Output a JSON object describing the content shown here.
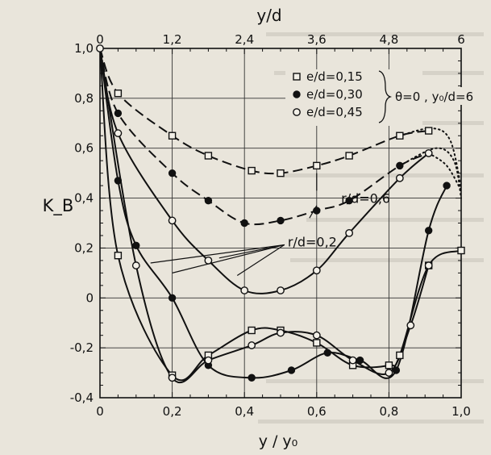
{
  "chart_data": {
    "type": "line",
    "x_top_label": "y/d",
    "x_top_ticks": [
      "0",
      "1,2",
      "2,4",
      "3,6",
      "4,8",
      "6"
    ],
    "x_bottom_label": "y / y₀",
    "x_bottom_ticks": [
      "0",
      "0,2",
      "0,4",
      "0,6",
      "0,8",
      "1,0"
    ],
    "ylabel": "K_B",
    "y_ticks": [
      "1,0",
      "0,8",
      "0,6",
      "0,4",
      "0,2",
      "0",
      "-0,2",
      "-0,4"
    ],
    "xlim": [
      0,
      1.0
    ],
    "ylim": [
      -0.4,
      1.0
    ],
    "grid": true,
    "legend": {
      "entries": [
        {
          "marker": "square",
          "label": "e/d=0,15"
        },
        {
          "marker": "filled-circle",
          "label": "e/d=0,30"
        },
        {
          "marker": "open-circle",
          "label": "e/d=0,45"
        }
      ],
      "brace_text": "θ=0 ,  y₀/d=6",
      "placement": "top-right"
    },
    "annotations": [
      {
        "text": "r/d=0,6",
        "x": 0.69,
        "y": 0.4
      },
      {
        "text": "r/d=0,2",
        "x": 0.56,
        "y": 0.2
      }
    ],
    "series": [
      {
        "marker": "square",
        "style": "dashed",
        "group": "r/d=0,6",
        "points": [
          [
            0,
            1.0
          ],
          [
            0.05,
            0.82
          ],
          [
            0.2,
            0.65
          ],
          [
            0.3,
            0.57
          ],
          [
            0.42,
            0.51
          ],
          [
            0.5,
            0.5
          ],
          [
            0.6,
            0.53
          ],
          [
            0.69,
            0.57
          ],
          [
            0.83,
            0.65
          ],
          [
            0.91,
            0.67
          ]
        ],
        "dotted_tail": [
          [
            0.83,
            0.65
          ],
          [
            0.92,
            0.68
          ],
          [
            0.97,
            0.63
          ],
          [
            1.0,
            0.44
          ]
        ]
      },
      {
        "marker": "filled-circle",
        "style": "dashed",
        "group": "r/d=0,6",
        "points": [
          [
            0,
            1.0
          ],
          [
            0.05,
            0.74
          ],
          [
            0.2,
            0.5
          ],
          [
            0.3,
            0.39
          ],
          [
            0.4,
            0.3
          ],
          [
            0.5,
            0.31
          ],
          [
            0.6,
            0.35
          ],
          [
            0.69,
            0.39
          ],
          [
            0.83,
            0.53
          ],
          [
            0.91,
            0.58
          ]
        ],
        "dotted_tail": [
          [
            0.83,
            0.53
          ],
          [
            0.93,
            0.6
          ],
          [
            0.98,
            0.55
          ],
          [
            1.0,
            0.4
          ]
        ]
      },
      {
        "marker": "open-circle",
        "style": "solid",
        "group": "r/d=0,2",
        "points": [
          [
            0,
            1.0
          ],
          [
            0.05,
            0.66
          ],
          [
            0.2,
            0.31
          ],
          [
            0.3,
            0.15
          ],
          [
            0.4,
            0.03
          ],
          [
            0.5,
            0.03
          ],
          [
            0.6,
            0.11
          ],
          [
            0.69,
            0.26
          ],
          [
            0.83,
            0.48
          ],
          [
            0.91,
            0.58
          ]
        ],
        "dotted_tail": [
          [
            0.91,
            0.58
          ],
          [
            0.96,
            0.53
          ],
          [
            1.0,
            0.43
          ]
        ]
      },
      {
        "marker": "filled-circle",
        "style": "solid",
        "group": "r/d=0,2",
        "points": [
          [
            0,
            1.0
          ],
          [
            0.05,
            0.47
          ],
          [
            0.1,
            0.21
          ],
          [
            0.2,
            0.0
          ],
          [
            0.3,
            -0.27
          ],
          [
            0.42,
            -0.32
          ],
          [
            0.53,
            -0.29
          ],
          [
            0.63,
            -0.22
          ],
          [
            0.72,
            -0.25
          ],
          [
            0.82,
            -0.29
          ],
          [
            0.91,
            0.27
          ],
          [
            0.96,
            0.45
          ]
        ],
        "dotted_tail": []
      },
      {
        "marker": "square",
        "style": "solid",
        "group": "r/d=0,2",
        "points": [
          [
            0,
            1.0
          ],
          [
            0.05,
            0.17
          ],
          [
            0.2,
            -0.31
          ],
          [
            0.3,
            -0.23
          ],
          [
            0.42,
            -0.13
          ],
          [
            0.5,
            -0.13
          ],
          [
            0.6,
            -0.18
          ],
          [
            0.7,
            -0.27
          ],
          [
            0.8,
            -0.27
          ],
          [
            0.83,
            -0.23
          ],
          [
            0.91,
            0.13
          ],
          [
            1.0,
            0.19
          ]
        ],
        "dotted_tail": []
      },
      {
        "marker": "open-circle",
        "style": "solid",
        "group": "r/d=0,2",
        "points": [
          [
            0,
            1.0
          ],
          [
            0.1,
            0.13
          ],
          [
            0.2,
            -0.32
          ],
          [
            0.3,
            -0.25
          ],
          [
            0.42,
            -0.19
          ],
          [
            0.5,
            -0.14
          ],
          [
            0.6,
            -0.15
          ],
          [
            0.7,
            -0.25
          ],
          [
            0.8,
            -0.3
          ],
          [
            0.86,
            -0.11
          ],
          [
            0.91,
            0.13
          ]
        ],
        "dotted_tail": []
      }
    ]
  }
}
